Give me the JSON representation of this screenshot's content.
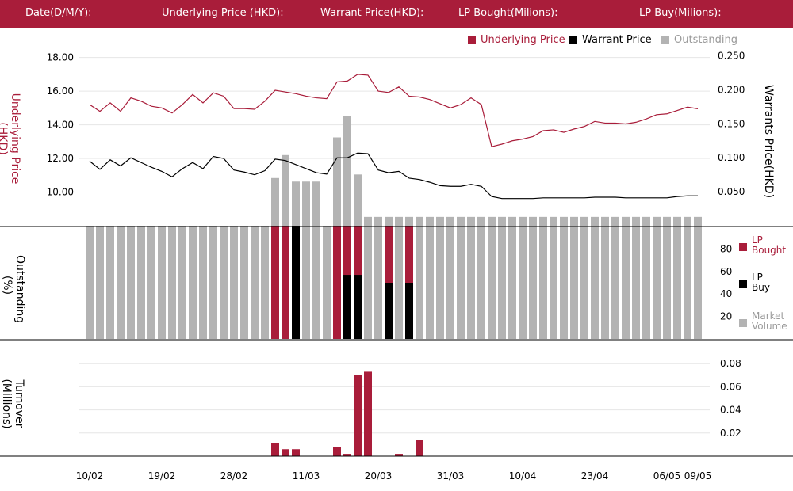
{
  "header": {
    "date_label": "Date(D/M/Y):",
    "underlying_label": "Underlying Price (HKD):",
    "warrant_label": "Warrant  Price(HKD):",
    "lp_bought_label": "LP Bought(Milions):",
    "lp_buy_label": "LP Buy(Milions):"
  },
  "legend": {
    "underlying": "Underlying Price",
    "warrant": "Warrant  Price",
    "outstanding": "Outstanding"
  },
  "side_legend": {
    "lp_bought": "LP Bought",
    "lp_buy": "LP Buy",
    "market_volume": "Market Volume"
  },
  "axis_titles": {
    "underlying": "Underlying Price (HKD)",
    "warrants": "Warrants  Price(HKD)",
    "outstanding": "Outstanding (%)",
    "turnover": "Turnover (Millions)"
  },
  "colors": {
    "brand": "#a91d3a",
    "warrant": "#000000",
    "outstanding": "#b3b3b3",
    "grid": "#e6e6e6"
  },
  "chart_data": {
    "type": "line",
    "x_ticks": [
      "10/02",
      "19/02",
      "28/02",
      "11/03",
      "20/03",
      "31/03",
      "10/04",
      "23/04",
      "06/05",
      "09/05"
    ],
    "x_tick_index": [
      0,
      7,
      14,
      21,
      28,
      35,
      42,
      49,
      56,
      59
    ],
    "panels": [
      {
        "name": "price",
        "type": "line",
        "ylim_left": [
          8.0,
          18.5
        ],
        "yticks_left": [
          "18.00",
          "16.00",
          "14.00",
          "12.00",
          "10.00"
        ],
        "ylim_right": [
          0.0,
          0.26
        ],
        "yticks_right": [
          "0.250",
          "0.200",
          "0.150",
          "0.100",
          "0.050"
        ],
        "series": [
          {
            "name": "Underlying Price",
            "axis": "left",
            "values": [
              15.2,
              14.8,
              15.3,
              14.8,
              15.6,
              15.4,
              15.1,
              15.0,
              14.7,
              15.2,
              15.8,
              15.3,
              15.9,
              15.7,
              14.96,
              14.96,
              14.92,
              15.4,
              16.05,
              15.95,
              15.85,
              15.7,
              15.6,
              15.55,
              16.55,
              16.6,
              17.0,
              16.95,
              16.0,
              15.92,
              16.25,
              15.7,
              15.65,
              15.5,
              15.25,
              15.0,
              15.2,
              15.6,
              15.2,
              12.7,
              12.85,
              13.05,
              13.15,
              13.3,
              13.65,
              13.7,
              13.55,
              13.75,
              13.9,
              14.2,
              14.1,
              14.1,
              14.05,
              14.15,
              14.35,
              14.6,
              14.65,
              14.85,
              15.05,
              14.95
            ]
          },
          {
            "name": "Warrant  Price",
            "axis": "right",
            "values": [
              0.095,
              0.083,
              0.097,
              0.088,
              0.1,
              0.093,
              0.086,
              0.08,
              0.072,
              0.084,
              0.093,
              0.084,
              0.102,
              0.099,
              0.082,
              0.079,
              0.075,
              0.081,
              0.098,
              0.096,
              0.09,
              0.084,
              0.078,
              0.076,
              0.1,
              0.1,
              0.107,
              0.106,
              0.082,
              0.078,
              0.08,
              0.07,
              0.068,
              0.064,
              0.059,
              0.058,
              0.058,
              0.061,
              0.058,
              0.043,
              0.04,
              0.04,
              0.04,
              0.04,
              0.041,
              0.041,
              0.041,
              0.041,
              0.041,
              0.042,
              0.042,
              0.042,
              0.041,
              0.041,
              0.041,
              0.041,
              0.041,
              0.043,
              0.044,
              0.044
            ]
          },
          {
            "name": "Outstanding",
            "type": "bar",
            "unit": "%",
            "values_pct": [
              null,
              null,
              null,
              null,
              null,
              null,
              null,
              null,
              null,
              null,
              null,
              null,
              null,
              null,
              null,
              null,
              null,
              null,
              27,
              40,
              25,
              25,
              25,
              null,
              50,
              62,
              29,
              5,
              5,
              5,
              5,
              5,
              5,
              5,
              5,
              5,
              5,
              5,
              5,
              5,
              5,
              5,
              5,
              5,
              5,
              5,
              5,
              5,
              5,
              5,
              5,
              5,
              5,
              5,
              5,
              5,
              5,
              5,
              5,
              5
            ]
          }
        ]
      },
      {
        "name": "outstanding",
        "type": "bar",
        "ylim": [
          0,
          100
        ],
        "yticks": [
          "80",
          "60",
          "40",
          "20"
        ],
        "series": [
          {
            "name": "Market Volume",
            "values": [
              100,
              100,
              100,
              100,
              100,
              100,
              100,
              100,
              100,
              100,
              100,
              100,
              100,
              100,
              100,
              100,
              100,
              100,
              100,
              100,
              100,
              100,
              100,
              100,
              100,
              100,
              100,
              100,
              100,
              100,
              100,
              100,
              100,
              100,
              100,
              100,
              100,
              100,
              100,
              100,
              100,
              100,
              100,
              100,
              100,
              100,
              100,
              100,
              100,
              100,
              100,
              100,
              100,
              100,
              100,
              100,
              100,
              100,
              100,
              100
            ]
          },
          {
            "name": "LP Bought",
            "values": [
              0,
              0,
              0,
              0,
              0,
              0,
              0,
              0,
              0,
              0,
              0,
              0,
              0,
              0,
              0,
              0,
              0,
              0,
              100,
              100,
              0,
              0,
              0,
              0,
              100,
              100,
              100,
              0,
              0,
              100,
              0,
              100,
              0,
              0,
              0,
              0,
              0,
              0,
              0,
              0,
              0,
              0,
              0,
              0,
              0,
              0,
              0,
              0,
              0,
              0,
              0,
              0,
              0,
              0,
              0,
              0,
              0,
              0,
              0,
              0
            ]
          },
          {
            "name": "LP Buy",
            "values": [
              0,
              0,
              0,
              0,
              0,
              0,
              0,
              0,
              0,
              0,
              0,
              0,
              0,
              0,
              0,
              0,
              0,
              0,
              0,
              0,
              100,
              0,
              0,
              0,
              0,
              57,
              57,
              0,
              0,
              50,
              0,
              50,
              0,
              0,
              0,
              0,
              0,
              0,
              0,
              0,
              0,
              0,
              0,
              0,
              0,
              0,
              0,
              0,
              0,
              0,
              0,
              0,
              0,
              0,
              0,
              0,
              0,
              0,
              0,
              0
            ]
          }
        ]
      },
      {
        "name": "turnover",
        "type": "bar",
        "ylim": [
          0,
          0.1
        ],
        "yticks": [
          "0.08",
          "0.06",
          "0.04",
          "0.02"
        ],
        "series": [
          {
            "name": "Turnover",
            "values": [
              0,
              0,
              0,
              0,
              0,
              0,
              0,
              0,
              0,
              0,
              0,
              0,
              0,
              0,
              0,
              0,
              0,
              0,
              0.011,
              0.006,
              0.006,
              0,
              0,
              0,
              0.008,
              0.002,
              0.07,
              0.073,
              0,
              0,
              0.002,
              0,
              0.014,
              0,
              0,
              0,
              0,
              0,
              0,
              0,
              0,
              0,
              0,
              0,
              0,
              0,
              0,
              0,
              0,
              0,
              0,
              0,
              0,
              0,
              0,
              0,
              0,
              0,
              0,
              0
            ]
          }
        ]
      }
    ]
  }
}
